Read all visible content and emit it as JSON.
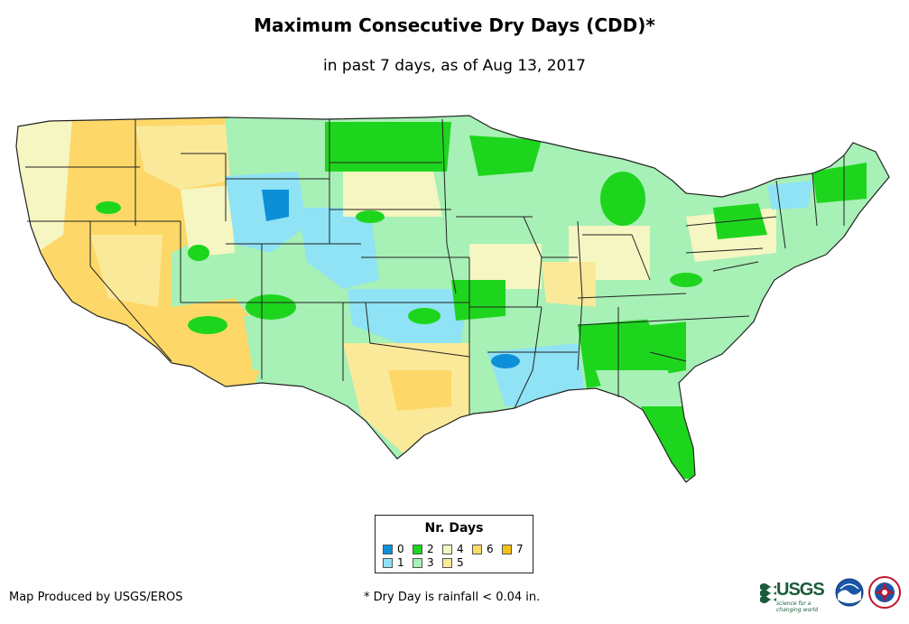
{
  "header": {
    "title": "Maximum Consecutive Dry Days (CDD)*",
    "subtitle": "in past 7 days, as of Aug 13, 2017"
  },
  "legend": {
    "title": "Nr. Days",
    "items": [
      {
        "label": "0",
        "color": "#0d8fd8"
      },
      {
        "label": "1",
        "color": "#8fe3f5"
      },
      {
        "label": "2",
        "color": "#1ed51e"
      },
      {
        "label": "3",
        "color": "#a7f0b6"
      },
      {
        "label": "4",
        "color": "#f5f6c2"
      },
      {
        "label": "5",
        "color": "#fbe99a"
      },
      {
        "label": "6",
        "color": "#fdd868"
      },
      {
        "label": "7",
        "color": "#f6c211"
      }
    ]
  },
  "footer": {
    "credit": "Map Produced by USGS/EROS",
    "note": "* Dry Day is rainfall < 0.04 in."
  },
  "logos": {
    "usgs": {
      "text": "USGS",
      "tagline": "science for a changing world"
    },
    "noaa": {
      "text": "noaa"
    },
    "nws": {
      "text": "NWS"
    }
  },
  "map": {
    "region": "Contiguous United States",
    "colors": {
      "d0": "#0d8fd8",
      "d1": "#8fe3f5",
      "d2": "#1ed51e",
      "d3": "#a7f0b6",
      "d4": "#f5f6c2",
      "d5": "#fbe99a",
      "d6": "#fdd868",
      "d7": "#f6c211"
    }
  }
}
